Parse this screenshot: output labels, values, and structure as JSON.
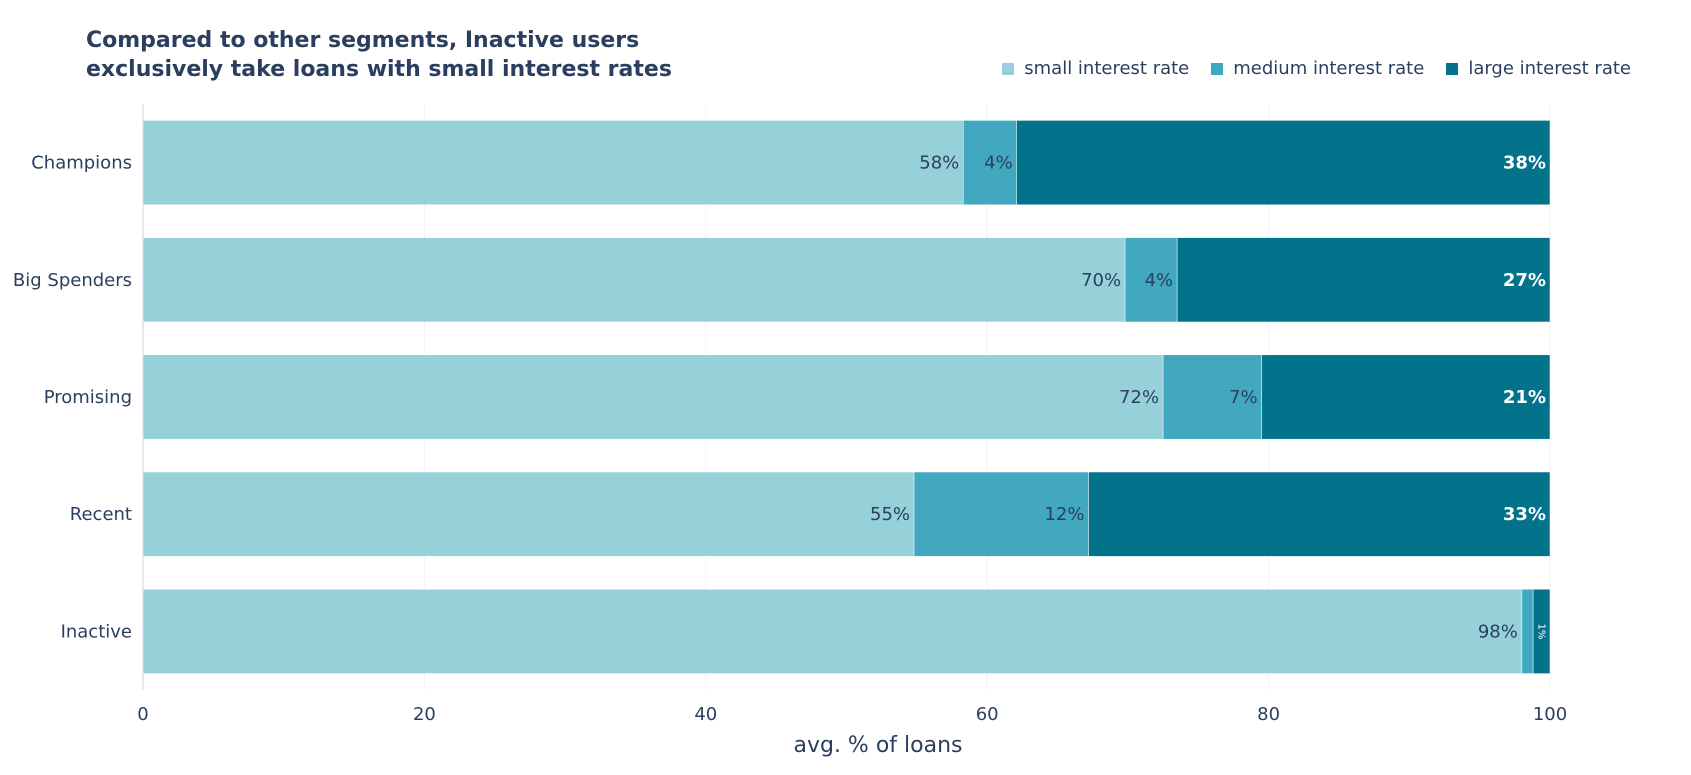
{
  "title_lines": [
    "Compared to other segments, Inactive users",
    "exclusively take loans with small interest rates"
  ],
  "chart_data": {
    "type": "bar",
    "orientation": "horizontal",
    "barmode": "stack",
    "categories": [
      "Champions",
      "Big Spenders",
      "Promising",
      "Recent",
      "Inactive"
    ],
    "series": [
      {
        "name": "small interest rate",
        "color": "#96d1d9",
        "values": [
          58.3,
          69.8,
          72.5,
          54.8,
          98.0
        ],
        "labels": [
          "58%",
          "70%",
          "72%",
          "55%",
          "98%"
        ]
      },
      {
        "name": "medium interest rate",
        "color": "#41a8bf",
        "values": [
          3.8,
          3.7,
          7.0,
          12.4,
          0.8
        ],
        "labels": [
          "4%",
          "4%",
          "7%",
          "12%",
          ""
        ]
      },
      {
        "name": "large interest rate",
        "color": "#03728b",
        "values": [
          37.9,
          26.5,
          20.5,
          32.8,
          1.2
        ],
        "labels": [
          "38%",
          "27%",
          "21%",
          "33%",
          "1%"
        ]
      }
    ],
    "xlabel": "avg. % of loans",
    "xlim": [
      0,
      100
    ],
    "xticks": [
      0,
      20,
      40,
      60,
      80,
      100
    ],
    "grid": true,
    "legend_position": "top-right"
  }
}
